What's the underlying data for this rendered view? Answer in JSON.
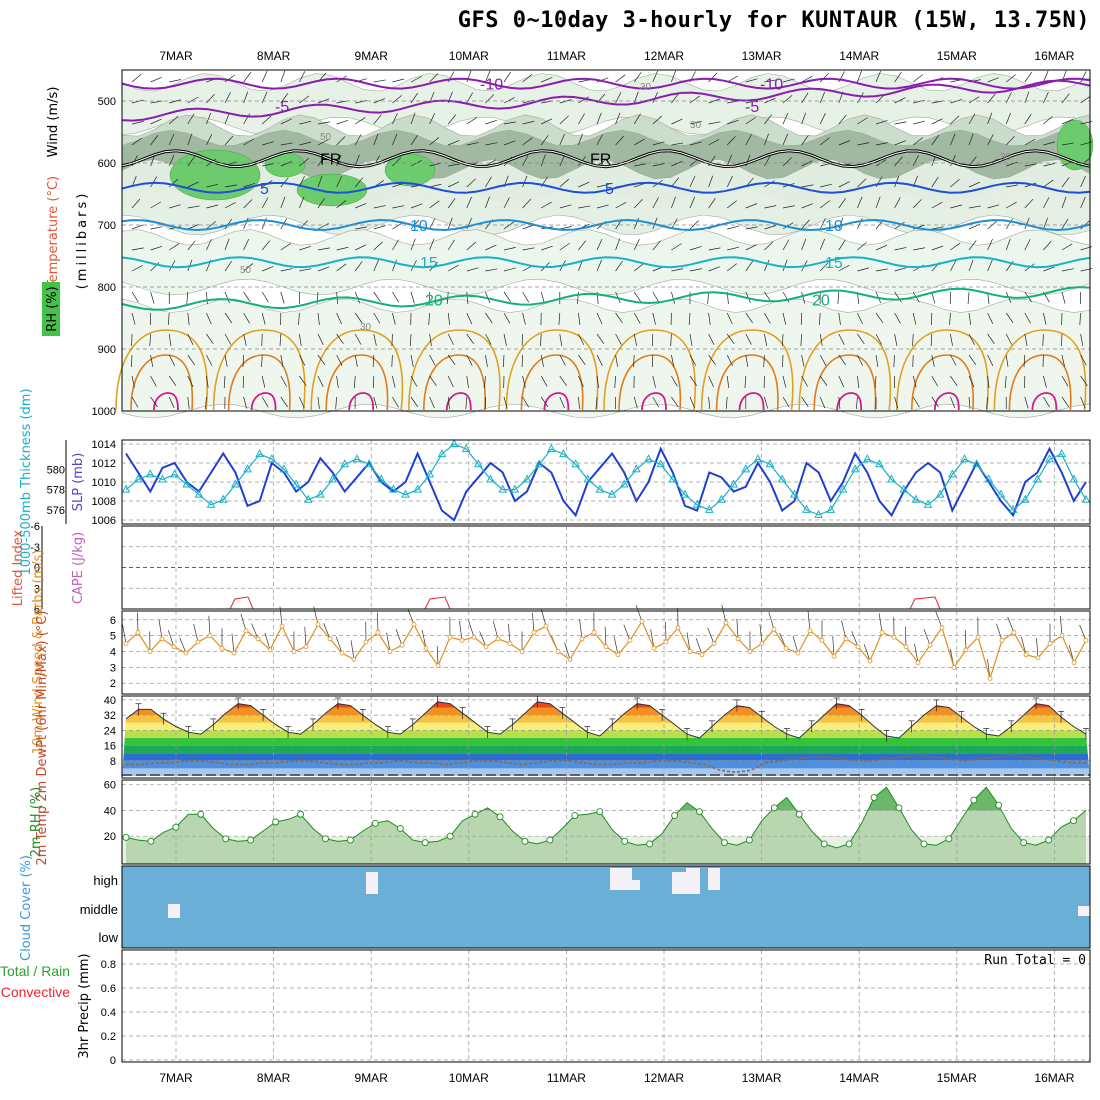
{
  "title": "GFS 0~10day 3-hourly for KUNTAUR (15W, 13.75N)",
  "dates": [
    "7MAR",
    "8MAR",
    "9MAR",
    "10MAR",
    "11MAR",
    "12MAR",
    "13MAR",
    "14MAR",
    "15MAR",
    "16MAR"
  ],
  "chart_data": [
    {
      "panel": "upper-air",
      "type": "heatmap",
      "ylabel": "(millibars)",
      "yticks": [
        500,
        600,
        700,
        800,
        900,
        1000
      ],
      "ylim": [
        450,
        1000
      ],
      "side_labels": [
        "Wind (m/s)",
        "Temperature (°C)",
        "RH (%)"
      ],
      "isotherms": [
        {
          "label": "-10",
          "p": 472,
          "color": "#8a1cb0"
        },
        {
          "label": "-5",
          "p": 508,
          "color": "#8a1cb0"
        },
        {
          "label": "FR",
          "p": 593,
          "color": "#000000"
        },
        {
          "label": "5",
          "p": 640,
          "color": "#1d4fd8"
        },
        {
          "label": "10",
          "p": 700,
          "color": "#1a8fd8"
        },
        {
          "label": "15",
          "p": 760,
          "color": "#19b2c4"
        },
        {
          "label": "20",
          "p": 820,
          "color": "#14b07a"
        }
      ],
      "rh_labels": [
        "30",
        "50",
        "50",
        "30",
        "30",
        "30"
      ]
    },
    {
      "panel": "slp-thickness",
      "type": "line",
      "ylabel_left": "1000-500mb Thickness (dm)",
      "ylabel_right": "SLP (mb)",
      "left_ticks": [
        576,
        578,
        580
      ],
      "right_ticks": [
        1006,
        1008,
        1010,
        1012,
        1014
      ],
      "series": [
        {
          "name": "SLP (mb)",
          "axis": "right",
          "color": "#1f3fd0",
          "values": [
            1013,
            1011,
            1009,
            1011.5,
            1012,
            1010,
            1009,
            1011,
            1013,
            1011,
            1007.5,
            1008,
            1012,
            1011,
            1009,
            1010,
            1012.5,
            1011,
            1009,
            1010.5,
            1012,
            1010,
            1009,
            1010,
            1013,
            1010,
            1007,
            1006,
            1009,
            1010.5,
            1012,
            1011,
            1008,
            1009,
            1012,
            1011,
            1008,
            1006.5,
            1010,
            1011.5,
            1013,
            1011,
            1008,
            1010,
            1013.5,
            1011,
            1007.5,
            1007,
            1011,
            1010.5,
            1009,
            1009.5,
            1012,
            1010,
            1007,
            1008,
            1012,
            1011,
            1008,
            1010,
            1013,
            1011,
            1008,
            1006.5,
            1009,
            1011,
            1012,
            1011,
            1007,
            1009.5,
            1012,
            1010,
            1008,
            1006.5,
            1010,
            1011,
            1013.5,
            1011,
            1008,
            1010
          ]
        },
        {
          "name": "1000-500mb Thickness (dm)",
          "axis": "left",
          "color": "#1ab0c6",
          "marker": "triangle",
          "values": [
            578,
            579,
            579.5,
            579,
            579.5,
            578.5,
            577.5,
            576.5,
            577,
            578.5,
            580,
            581.5,
            581,
            580,
            578.5,
            577,
            577.5,
            579,
            580.5,
            581,
            580.5,
            579,
            578,
            577.5,
            578,
            579.5,
            581.5,
            582.5,
            582,
            580.5,
            579,
            578,
            578,
            579,
            580.5,
            582,
            581.5,
            580.5,
            579,
            578,
            577.5,
            578.5,
            580,
            581,
            580.5,
            579,
            577.5,
            576.5,
            576,
            577,
            578.5,
            580,
            581,
            580.5,
            579,
            577.5,
            576,
            575.5,
            576,
            578,
            580,
            581,
            580.5,
            579,
            578,
            577,
            576.5,
            577.5,
            579.5,
            581,
            580.5,
            579,
            577.5,
            576,
            577,
            579,
            581,
            581.5,
            579,
            577
          ]
        }
      ]
    },
    {
      "panel": "cape-li",
      "type": "line",
      "ylabel_left": "Lifted Index",
      "ylabel_right": "CAPE (J/kg)",
      "yticks": [
        "-6",
        "-3",
        "0",
        "3",
        "6"
      ]
    },
    {
      "panel": "wind10m",
      "type": "line",
      "ylabel": "10m Wind Speed & Barbs (m/s)",
      "yticks": [
        2,
        3,
        4,
        5,
        6
      ],
      "series": [
        {
          "name": "10m Wind Speed",
          "color": "#e09020",
          "values": [
            4.5,
            5.2,
            4.0,
            4.8,
            4.3,
            3.9,
            4.6,
            5.0,
            4.2,
            3.9,
            5.3,
            4.8,
            4.1,
            5.6,
            4.0,
            4.3,
            5.7,
            4.8,
            3.9,
            3.5,
            4.6,
            5.2,
            4.0,
            4.4,
            5.7,
            4.2,
            3.1,
            4.9,
            4.7,
            4.9,
            4.3,
            4.8,
            4.5,
            4.0,
            5.2,
            5.6,
            4.0,
            3.5,
            4.8,
            5.2,
            4.3,
            3.8,
            4.7,
            5.9,
            4.2,
            4.6,
            5.5,
            4.0,
            3.8,
            4.5,
            5.8,
            4.8,
            4.0,
            4.5,
            5.4,
            4.2,
            3.9,
            5.3,
            4.7,
            3.7,
            4.8,
            4.3,
            3.4,
            5.2,
            4.9,
            4.3,
            3.3,
            4.4,
            5.5,
            3.0,
            4.1,
            4.9,
            2.3,
            4.7,
            5.2,
            3.8,
            3.6,
            4.5,
            5.0,
            3.3,
            4.7
          ]
        }
      ]
    },
    {
      "panel": "temp2m",
      "type": "area",
      "ylabel": "2m Temp 2m DewPt (6hr Min/Max) (°C)",
      "yticks": [
        8,
        16,
        24,
        32,
        40
      ],
      "series": [
        {
          "name": "2m Temp",
          "values": [
            30,
            35,
            35,
            30,
            26,
            23,
            22,
            27,
            33,
            38,
            37,
            32,
            27,
            23,
            22,
            27,
            33,
            38,
            37,
            32,
            27,
            23,
            22,
            27,
            33,
            39,
            38,
            33,
            28,
            23,
            22,
            27,
            33,
            39,
            38,
            33,
            28,
            23,
            21,
            27,
            33,
            38,
            37,
            32,
            27,
            22,
            20,
            26,
            32,
            37,
            36,
            31,
            26,
            22,
            20,
            26,
            32,
            38,
            37,
            32,
            26,
            21,
            20,
            26,
            32,
            37,
            36,
            31,
            26,
            22,
            21,
            26,
            32,
            38,
            37,
            31,
            26,
            22
          ]
        },
        {
          "name": "2m DewPt",
          "values": [
            6,
            6,
            7,
            7,
            8,
            8,
            7,
            6,
            6,
            7,
            7,
            8,
            8,
            7,
            6,
            6,
            7,
            7,
            8,
            7,
            7,
            6,
            7,
            8,
            8,
            7,
            6,
            7,
            8,
            8,
            7,
            6,
            6,
            7,
            7,
            8,
            8,
            7,
            6,
            3,
            2,
            3,
            7,
            8,
            9,
            10,
            10,
            9,
            8,
            8,
            9,
            10,
            11,
            10,
            9,
            8,
            9,
            10,
            11,
            10,
            9,
            8,
            7,
            7
          ]
        }
      ]
    },
    {
      "panel": "rh2m",
      "type": "area",
      "ylabel": "2m RH (%)",
      "yticks": [
        20,
        40,
        60
      ],
      "series": [
        {
          "name": "2m RH",
          "color": "#228b22",
          "values": [
            19,
            17,
            16,
            23,
            27,
            37,
            37,
            26,
            18,
            16,
            17,
            24,
            31,
            33,
            37,
            26,
            18,
            16,
            17,
            24,
            30,
            32,
            26,
            17,
            15,
            16,
            20,
            32,
            37,
            42,
            35,
            24,
            16,
            14,
            17,
            26,
            36,
            37,
            39,
            25,
            16,
            13,
            14,
            22,
            36,
            46,
            39,
            26,
            15,
            13,
            17,
            32,
            42,
            50,
            37,
            24,
            14,
            11,
            14,
            30,
            50,
            58,
            42,
            25,
            14,
            13,
            18,
            33,
            48,
            58,
            44,
            26,
            15,
            13,
            17,
            27,
            32,
            40
          ]
        }
      ]
    },
    {
      "panel": "cloud",
      "type": "heatmap",
      "ylabel": "Cloud Cover (%)",
      "layers": [
        "high",
        "middle",
        "low"
      ]
    },
    {
      "panel": "precip",
      "type": "bar",
      "ylabel": "3hr Precip (mm)",
      "ylabel_extra": [
        "Total / Rain",
        "Convective"
      ],
      "yticks": [
        "0",
        "0.2",
        "0.4",
        "0.6",
        "0.8"
      ],
      "run_total": "Run Total = 0"
    }
  ]
}
